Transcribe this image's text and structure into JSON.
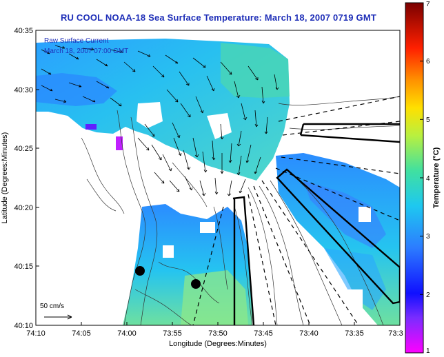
{
  "title": "RU COOL  NOAA-18  Sea Surface Temperature:  March 18, 2007 0719 GMT",
  "inset": {
    "line1": "Raw Surface Current",
    "line2": "March 18, 2007 07:00 GMT"
  },
  "scale_label": "50 cm/s",
  "axes": {
    "xlabel": "Longitude (Degrees:Minutes)",
    "ylabel": "Latitude (Degrees:Minutes)",
    "x_ticks": [
      "74:10",
      "74:05",
      "74:00",
      "73:55",
      "73:50",
      "73:45",
      "73:40",
      "73:35",
      "73:3"
    ],
    "y_ticks": [
      "40:35",
      "40:30",
      "40:25",
      "40:20",
      "40:15",
      "40:10"
    ]
  },
  "colorbar": {
    "label": "Temperature (°C)",
    "ticks": [
      "7",
      "6",
      "5",
      "4",
      "3",
      "2",
      "1"
    ],
    "range": [
      1,
      7
    ]
  },
  "colors": {
    "title": "#1f2fb8",
    "land": "#ffffff",
    "frame": "#000000"
  }
}
